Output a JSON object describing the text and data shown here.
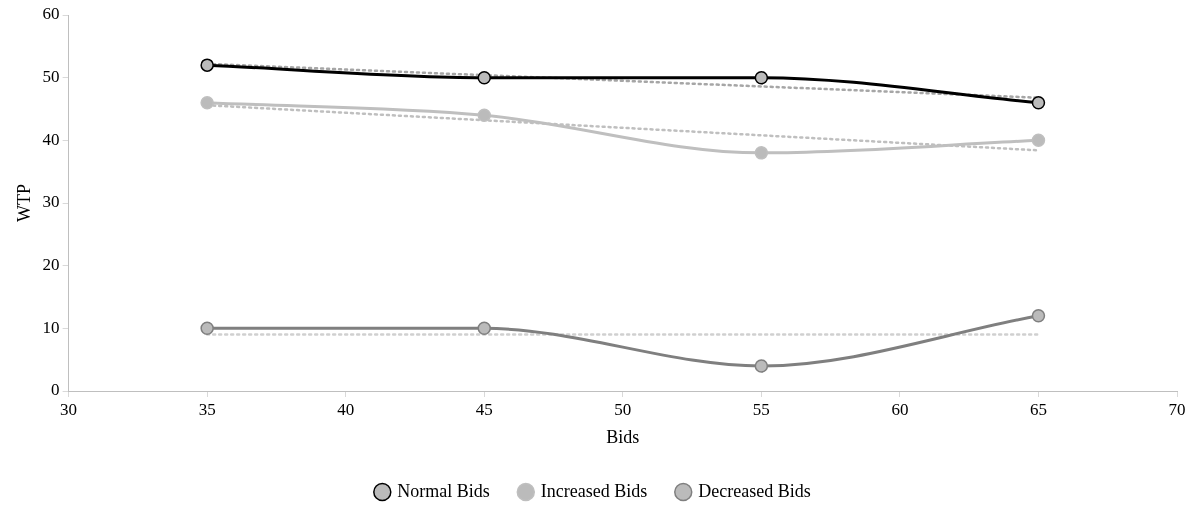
{
  "chart_data": {
    "type": "line",
    "xlabel": "Bids",
    "ylabel": "WTP",
    "x": [
      35,
      45,
      55,
      65
    ],
    "xlim": [
      30,
      70
    ],
    "xticks": [
      30,
      35,
      40,
      45,
      50,
      55,
      60,
      65,
      70
    ],
    "ylim": [
      0,
      60
    ],
    "yticks": [
      0,
      10,
      20,
      30,
      40,
      50,
      60
    ],
    "grid": false,
    "legend": "bottom",
    "marker": "circle",
    "line_style": "solid",
    "series": [
      {
        "name": "Normal Bids",
        "color": "#000000",
        "values": [
          52,
          50,
          50,
          46
        ]
      },
      {
        "name": "Increased Bids",
        "color": "#bfbfbf",
        "values": [
          46,
          44,
          38,
          40
        ]
      },
      {
        "name": "Decreased Bids",
        "color": "#7f7f7f",
        "values": [
          10,
          10,
          4,
          12
        ]
      },
      {
        "type": "line",
        "color": "#a6a6a6",
        "values": [
          52.2,
          50.4,
          48.6,
          46.8
        ],
        "marker": "none",
        "line_style": "dotted"
      },
      {
        "type": "line",
        "color": "#bfbfbf",
        "values": [
          45.6,
          43.2,
          40.8,
          38.4
        ],
        "marker": "none",
        "line_style": "dotted"
      },
      {
        "type": "line",
        "color": "#d0d0d0",
        "values": [
          9,
          9,
          9,
          9
        ],
        "marker": "none",
        "line_style": "dotted"
      }
    ]
  }
}
